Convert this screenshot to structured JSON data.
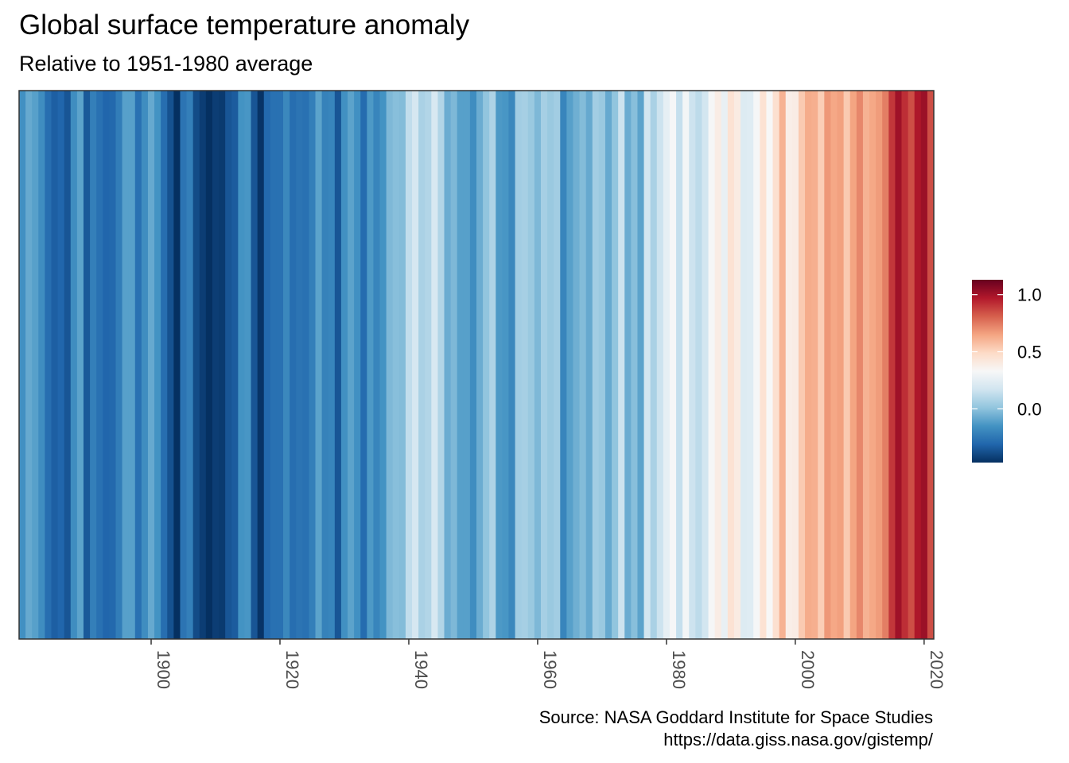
{
  "chart_data": {
    "type": "heatmap",
    "title": "Global surface temperature anomaly",
    "subtitle": "Relative to 1951-1980 average",
    "caption_lines": [
      "Source: NASA Goddard Institute for Space Studies",
      "https://data.giss.nasa.gov/gistemp/"
    ],
    "x_ticks": [
      1900,
      1920,
      1940,
      1960,
      1980,
      2000,
      2020
    ],
    "xlim": [
      1880,
      2021
    ],
    "legend": {
      "ticks": [
        "1.0",
        "0.5",
        "0.0"
      ],
      "tick_values": [
        1.0,
        0.5,
        0.0
      ],
      "range": [
        -0.47,
        1.13
      ],
      "placement": "right"
    },
    "palette": [
      "#053061",
      "#2166ac",
      "#4393c3",
      "#92c5de",
      "#d1e5f0",
      "#f7f7f7",
      "#fddbc7",
      "#f4a582",
      "#d6604d",
      "#b2182b",
      "#67001f"
    ],
    "years": [
      1880,
      1881,
      1882,
      1883,
      1884,
      1885,
      1886,
      1887,
      1888,
      1889,
      1890,
      1891,
      1892,
      1893,
      1894,
      1895,
      1896,
      1897,
      1898,
      1899,
      1900,
      1901,
      1902,
      1903,
      1904,
      1905,
      1906,
      1907,
      1908,
      1909,
      1910,
      1911,
      1912,
      1913,
      1914,
      1915,
      1916,
      1917,
      1918,
      1919,
      1920,
      1921,
      1922,
      1923,
      1924,
      1925,
      1926,
      1927,
      1928,
      1929,
      1930,
      1931,
      1932,
      1933,
      1934,
      1935,
      1936,
      1937,
      1938,
      1939,
      1940,
      1941,
      1942,
      1943,
      1944,
      1945,
      1946,
      1947,
      1948,
      1949,
      1950,
      1951,
      1952,
      1953,
      1954,
      1955,
      1956,
      1957,
      1958,
      1959,
      1960,
      1961,
      1962,
      1963,
      1964,
      1965,
      1966,
      1967,
      1968,
      1969,
      1970,
      1971,
      1972,
      1973,
      1974,
      1975,
      1976,
      1977,
      1978,
      1979,
      1980,
      1981,
      1982,
      1983,
      1984,
      1985,
      1986,
      1987,
      1988,
      1989,
      1990,
      1991,
      1992,
      1993,
      1994,
      1995,
      1996,
      1997,
      1998,
      1999,
      2000,
      2001,
      2002,
      2003,
      2004,
      2005,
      2006,
      2007,
      2008,
      2009,
      2010,
      2011,
      2012,
      2013,
      2014,
      2015,
      2016,
      2017,
      2018,
      2019,
      2020,
      2021
    ],
    "anomalies": [
      -0.16,
      -0.08,
      -0.11,
      -0.17,
      -0.28,
      -0.33,
      -0.31,
      -0.36,
      -0.17,
      -0.1,
      -0.35,
      -0.22,
      -0.27,
      -0.31,
      -0.3,
      -0.23,
      -0.11,
      -0.11,
      -0.27,
      -0.17,
      -0.08,
      -0.15,
      -0.28,
      -0.37,
      -0.47,
      -0.26,
      -0.22,
      -0.39,
      -0.43,
      -0.48,
      -0.43,
      -0.44,
      -0.36,
      -0.34,
      -0.15,
      -0.14,
      -0.36,
      -0.46,
      -0.3,
      -0.27,
      -0.27,
      -0.19,
      -0.28,
      -0.26,
      -0.27,
      -0.22,
      -0.1,
      -0.21,
      -0.2,
      -0.36,
      -0.16,
      -0.1,
      -0.16,
      -0.29,
      -0.13,
      -0.2,
      -0.15,
      -0.03,
      -0.01,
      -0.02,
      0.13,
      0.19,
      0.07,
      0.09,
      0.2,
      0.09,
      -0.07,
      -0.03,
      -0.11,
      -0.11,
      -0.17,
      -0.07,
      0.01,
      0.08,
      -0.13,
      -0.14,
      -0.19,
      0.05,
      0.06,
      0.03,
      -0.03,
      0.06,
      0.03,
      0.05,
      -0.2,
      -0.11,
      -0.06,
      -0.02,
      -0.08,
      0.05,
      0.03,
      -0.08,
      0.01,
      0.16,
      -0.07,
      -0.01,
      -0.1,
      0.18,
      0.07,
      0.16,
      0.26,
      0.32,
      0.14,
      0.31,
      0.16,
      0.12,
      0.18,
      0.32,
      0.39,
      0.27,
      0.45,
      0.4,
      0.22,
      0.23,
      0.32,
      0.45,
      0.33,
      0.46,
      0.61,
      0.38,
      0.39,
      0.54,
      0.63,
      0.62,
      0.53,
      0.68,
      0.64,
      0.66,
      0.54,
      0.65,
      0.72,
      0.61,
      0.64,
      0.67,
      0.74,
      0.9,
      1.01,
      0.92,
      0.85,
      0.98,
      1.02,
      0.85
    ]
  }
}
